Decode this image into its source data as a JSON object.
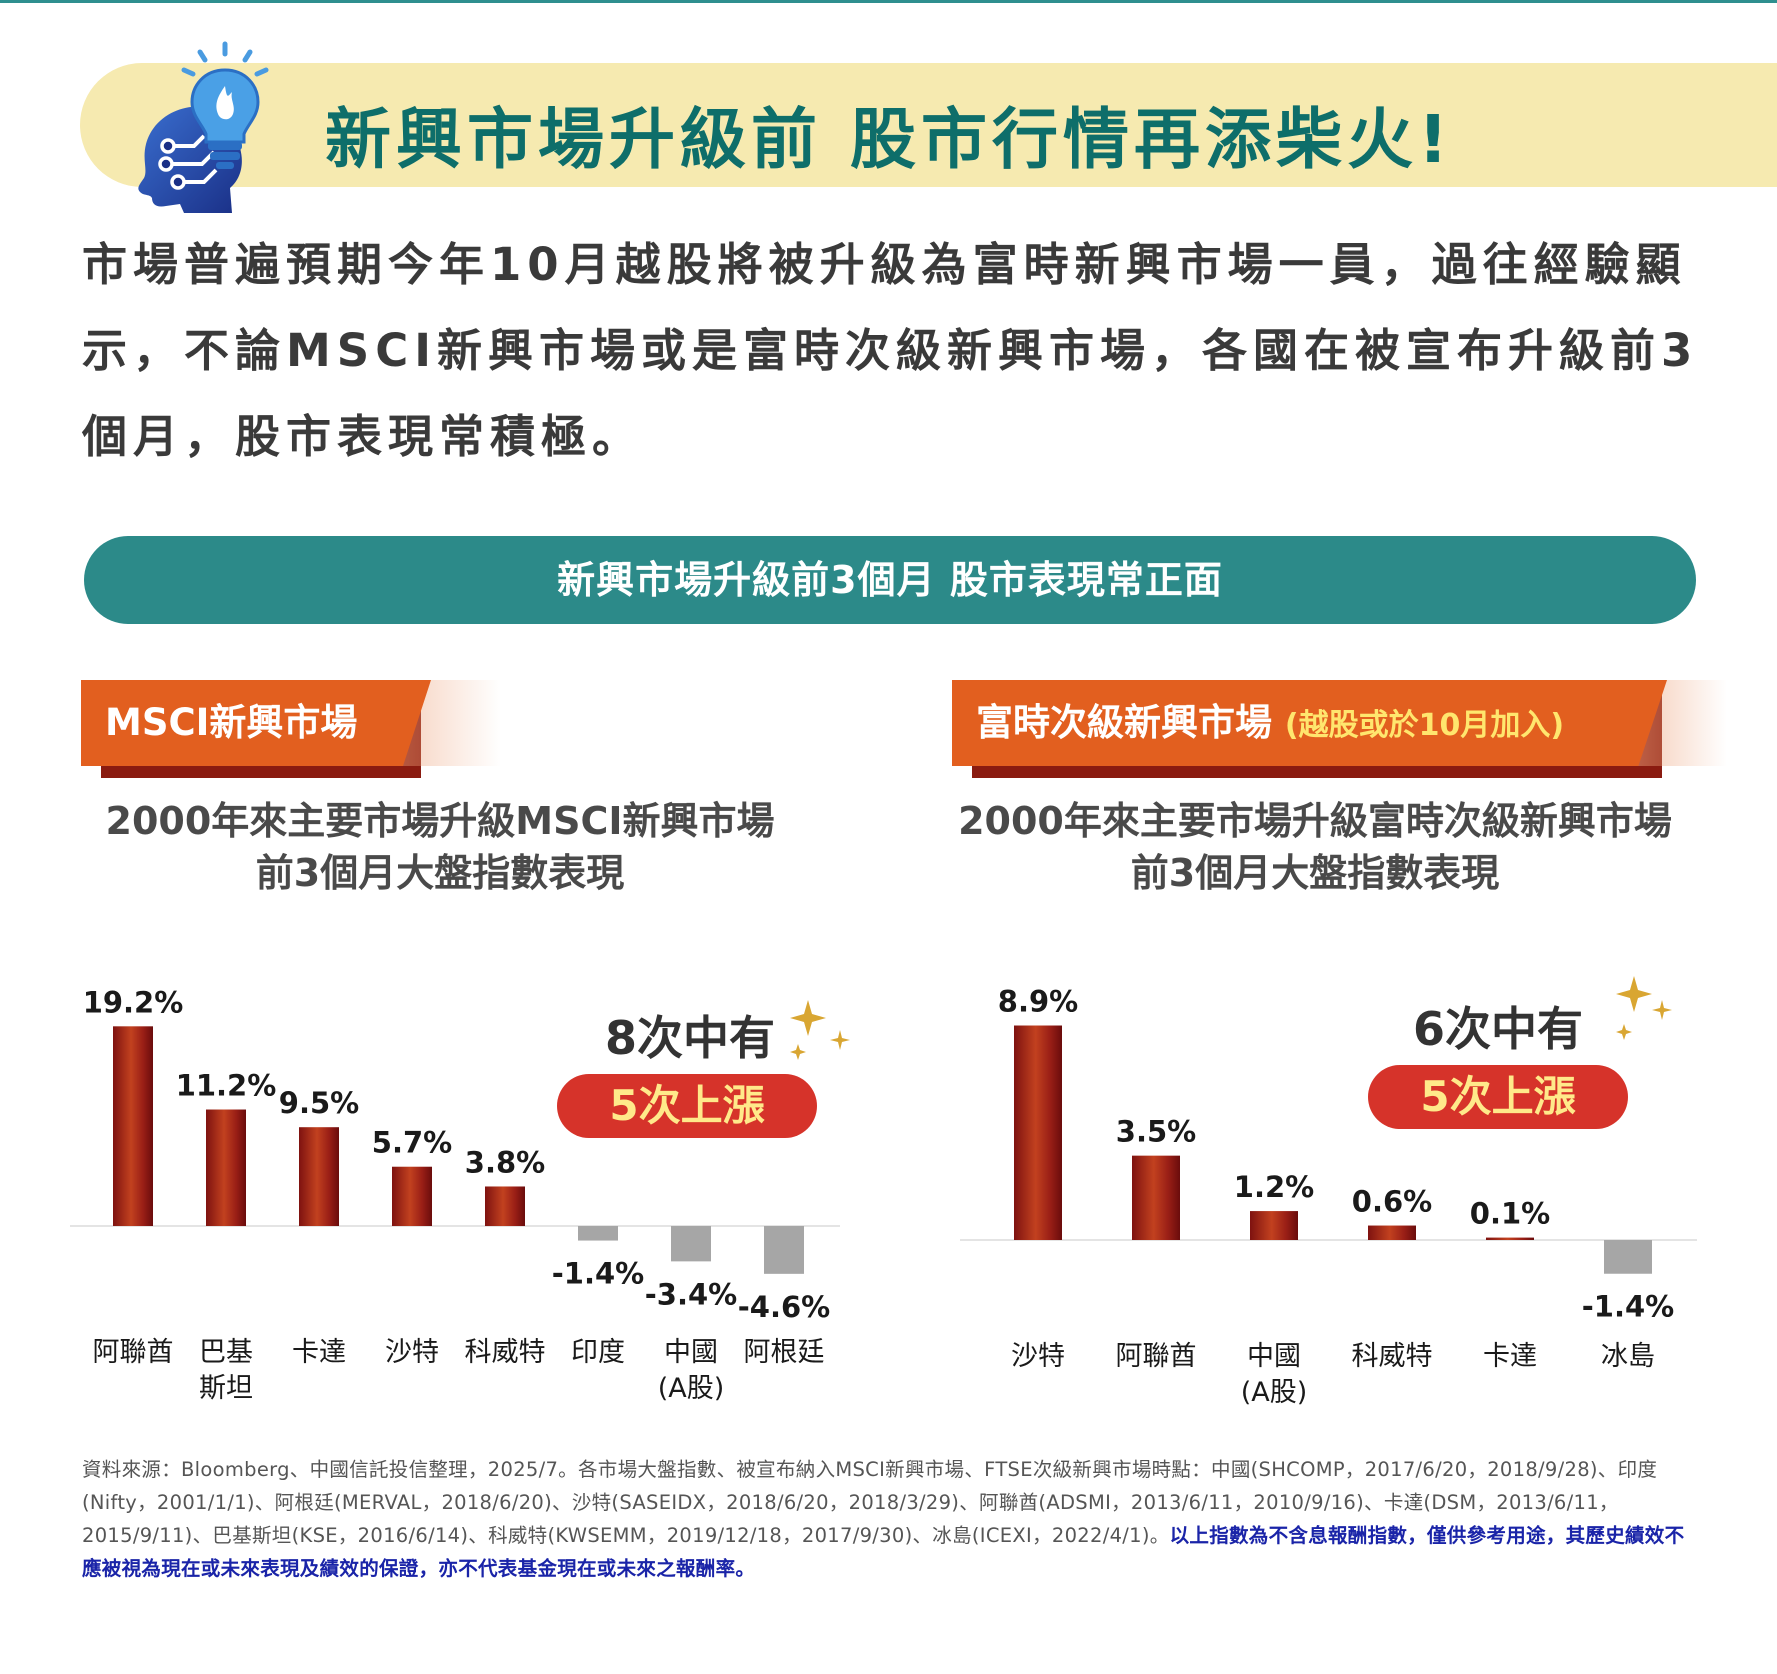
{
  "title": "新興市場升級前  股市行情再添柴火!",
  "intro": "市場普遍預期今年10月越股將被升級為富時新興市場一員，過往經驗顯示，不論MSCI新興市場或是富時次級新興市場，各國在被宣布升級前3個月，股市表現常積極。",
  "subhead": "新興市場升級前3個月 股市表現常正面",
  "colors": {
    "teal": "#2c8a89",
    "orange": "#e25f1f",
    "bar_red": "#a52418",
    "bar_negative": "#a6a6a6",
    "badge_red": "#d6332a",
    "badge_text": "#ffe98a",
    "title_band": "#f6eab0"
  },
  "left_panel": {
    "tag": "MSCI新興市場",
    "chart_title_line1": "2000年來主要市場升級MSCI新興市場",
    "chart_title_line2": "前3個月大盤指數表現",
    "callout_line1": "8次中有",
    "callout_badge": "5次上漲"
  },
  "right_panel": {
    "tag": "富時次級新興市場",
    "tag_note": "(越股或於10月加入)",
    "chart_title_line1": "2000年來主要市場升級富時次級新興市場",
    "chart_title_line2": "前3個月大盤指數表現",
    "callout_line1": "6次中有",
    "callout_badge": "5次上漲"
  },
  "chart_data": [
    {
      "type": "bar",
      "categories": [
        "阿聯酋",
        "巴基\n斯坦",
        "卡達",
        "沙特",
        "科威特",
        "印度",
        "中國\n(A股)",
        "阿根廷"
      ],
      "values": [
        19.2,
        11.2,
        9.5,
        5.7,
        3.8,
        -1.4,
        -3.4,
        -4.6
      ],
      "labels": [
        "19.2%",
        "11.2%",
        "9.5%",
        "5.7%",
        "3.8%",
        "-1.4%",
        "-3.4%",
        "-4.6%"
      ],
      "title": "2000年來主要市場升級MSCI新興市場 前3個月大盤指數表現",
      "grid": false,
      "legend": "none"
    },
    {
      "type": "bar",
      "categories": [
        "沙特",
        "阿聯酋",
        "中國\n(A股)",
        "科威特",
        "卡達",
        "冰島"
      ],
      "values": [
        8.9,
        3.5,
        1.2,
        0.6,
        0.1,
        -1.4
      ],
      "labels": [
        "8.9%",
        "3.5%",
        "1.2%",
        "0.6%",
        "0.1%",
        "-1.4%"
      ],
      "title": "2000年來主要市場升級富時次級新興市場 前3個月大盤指數表現",
      "grid": false,
      "legend": "none"
    }
  ],
  "footnote_main": "資料來源：Bloomberg、中國信託投信整理，2025/7。各市場大盤指數、被宣布納入MSCI新興市場、FTSE次級新興市場時點：中國(SHCOMP，2017/6/20，2018/9/28)、印度(Nifty，2001/1/1)、阿根廷(MERVAL，2018/6/20)、沙特(SASEIDX，2018/6/20，2018/3/29)、阿聯酋(ADSMI，2013/6/11，2010/9/16)、卡達(DSM，2013/6/11，2015/9/11)、巴基斯坦(KSE，2016/6/14)、科威特(KWSEMM，2019/12/18，2017/9/30)、冰島(ICEXI，2022/4/1)。",
  "footnote_disclaimer": "以上指數為不含息報酬指數，僅供參考用途，其歷史績效不應被視為現在或未來表現及績效的保證，亦不代表基金現在或未來之報酬率。"
}
